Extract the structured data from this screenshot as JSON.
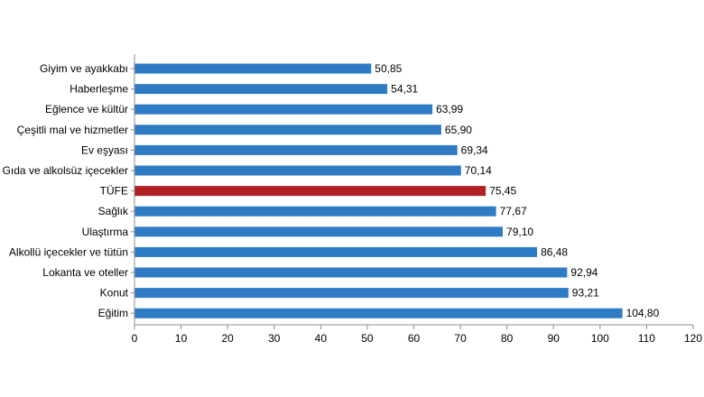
{
  "chart_data": {
    "type": "bar",
    "orientation": "horizontal",
    "categories": [
      "Giyim ve ayakkabı",
      "Haberleşme",
      "Eğlence ve kültür",
      "Çeşitli mal ve hizmetler",
      "Ev eşyası",
      "Gıda ve alkolsüz içecekler",
      "TÜFE",
      "Sağlık",
      "Ulaştırma",
      "Alkollü içecekler ve tütün",
      "Lokanta ve oteller",
      "Konut",
      "Eğitim"
    ],
    "values": [
      50.85,
      54.31,
      63.99,
      65.9,
      69.34,
      70.14,
      75.45,
      77.67,
      79.1,
      86.48,
      92.94,
      93.21,
      104.8
    ],
    "value_labels": [
      "50,85",
      "54,31",
      "63,99",
      "65,90",
      "69,34",
      "70,14",
      "75,45",
      "77,67",
      "79,10",
      "86,48",
      "92,94",
      "93,21",
      "104,80"
    ],
    "highlight": "TÜFE",
    "colors": {
      "bar": "#2e7bc4",
      "highlight": "#b01f24",
      "axis": "#8c8c8c"
    },
    "xlim": [
      0,
      120
    ],
    "xticks": [
      0,
      10,
      20,
      30,
      40,
      50,
      60,
      70,
      80,
      90,
      100,
      110,
      120
    ],
    "title": "",
    "xlabel": "",
    "ylabel": "",
    "grid": false
  }
}
